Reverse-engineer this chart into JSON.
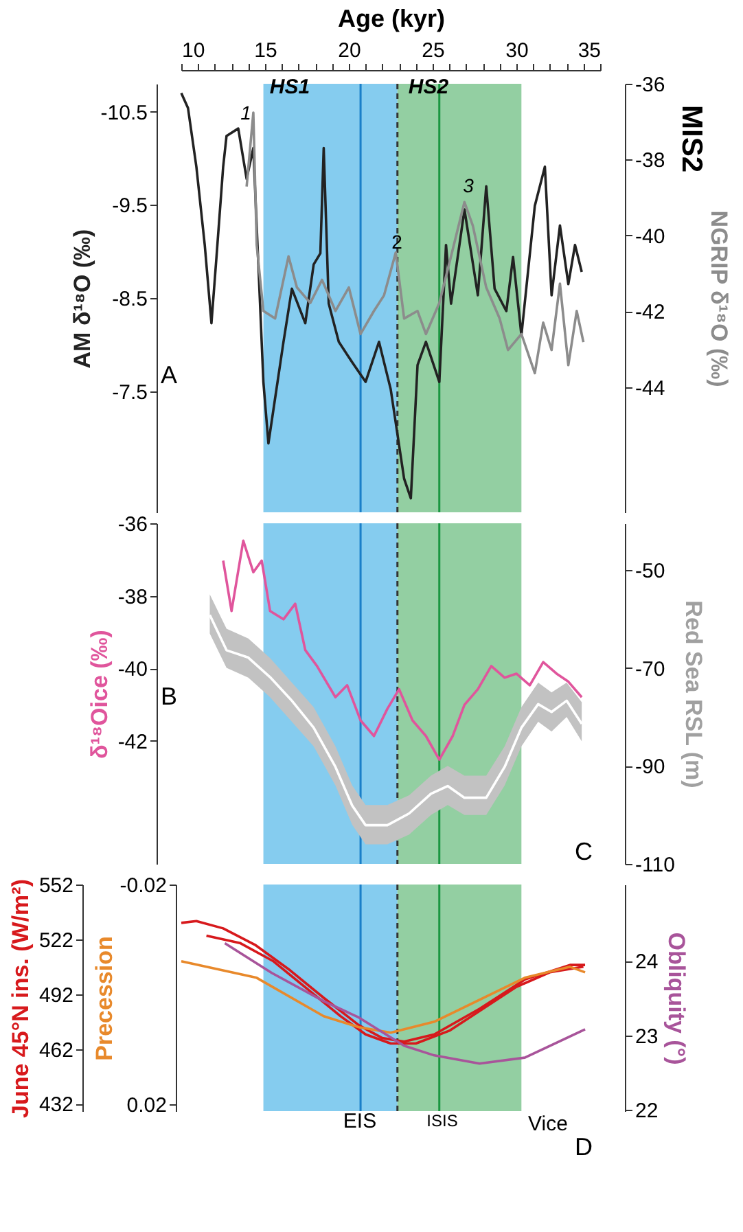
{
  "chart_data": [
    {
      "type": "line",
      "xlabel": "Age (kyr)",
      "ylabel": "AM δ¹⁸O (‰)",
      "y2label": "NGRIP δ¹⁸O (‰)",
      "xlim": [
        10,
        35
      ],
      "xticks": [
        10,
        {
          "value": 11,
          "label": null
        },
        {
          "value": 12,
          "label": null
        },
        {
          "value": 13,
          "label": null
        },
        {
          "value": 14,
          "label": null
        },
        15,
        {
          "value": 16,
          "label": null
        },
        {
          "value": 17,
          "label": null
        },
        {
          "value": 18,
          "label": null
        },
        {
          "value": 19,
          "label": null
        },
        20,
        {
          "value": 21,
          "label": null
        },
        {
          "value": 22,
          "label": null
        },
        {
          "value": 23,
          "label": null
        },
        {
          "value": 24,
          "label": null
        },
        25,
        {
          "value": 26,
          "label": null
        },
        {
          "value": 27,
          "label": null
        },
        {
          "value": 28,
          "label": null
        },
        {
          "value": 29,
          "label": null
        },
        30,
        {
          "value": 31,
          "label": null
        },
        {
          "value": 32,
          "label": null
        },
        {
          "value": 33,
          "label": null
        },
        {
          "value": 34,
          "label": null
        },
        35
      ],
      "ylim": [
        -6.2,
        -10.8
      ],
      "yticks": [
        -10.5,
        -9.5,
        -8.5,
        -7.5
      ],
      "y2lim": [
        -47.3,
        -36
      ],
      "y2ticks": [
        -36,
        -38,
        -40,
        -42,
        -44
      ],
      "series": [
        {
          "color": "#222222",
          "axis": "y",
          "x": [
            10.0,
            10.4,
            10.9,
            11.4,
            11.8,
            12.1,
            12.5,
            12.7,
            13.4,
            13.9,
            14.3,
            14.7,
            14.9,
            15.2,
            16.1,
            16.6,
            17.4,
            17.9,
            18.3,
            18.5,
            18.8,
            19.4,
            20.2,
            21.0,
            21.8,
            22.5,
            23.3,
            23.7,
            24.1,
            24.6,
            25.4,
            25.8,
            26.1,
            26.9,
            27.7,
            28.2,
            28.7,
            29.4,
            29.8,
            30.3,
            31.1,
            31.7,
            32.1,
            32.6,
            33.1,
            33.5,
            33.9
          ],
          "values": [
            -10.7,
            -10.54,
            -9.91,
            -9.07,
            -8.23,
            -8.94,
            -9.91,
            -10.24,
            -10.32,
            -9.78,
            -10.11,
            -8.44,
            -7.6,
            -6.94,
            -8.03,
            -8.6,
            -8.23,
            -8.86,
            -8.98,
            -10.11,
            -8.44,
            -8.03,
            -7.81,
            -7.6,
            -8.03,
            -7.52,
            -6.56,
            -6.35,
            -7.78,
            -8.03,
            -7.6,
            -9.07,
            -8.44,
            -9.45,
            -8.53,
            -9.7,
            -8.6,
            -8.36,
            -8.94,
            -8.1,
            -9.49,
            -9.91,
            -8.53,
            -9.28,
            -8.65,
            -9.07,
            -8.78
          ]
        },
        {
          "color": "#8c8c8c",
          "axis": "y2",
          "x": [
            13.9,
            14.3,
            14.5,
            14.9,
            15.6,
            16.4,
            16.9,
            17.7,
            18.4,
            19.2,
            20.0,
            20.7,
            21.5,
            22.1,
            22.8,
            23.3,
            24.1,
            24.6,
            25.4,
            26.1,
            26.9,
            27.4,
            28.2,
            29.0,
            29.5,
            30.3,
            31.1,
            31.6,
            32.1,
            32.6,
            33.1,
            33.6,
            34.0
          ],
          "values": [
            -38.71,
            -36.76,
            -40.25,
            -41.99,
            -42.19,
            -40.55,
            -41.37,
            -41.78,
            -41.17,
            -41.99,
            -41.37,
            -42.6,
            -41.99,
            -41.58,
            -40.45,
            -42.19,
            -41.99,
            -42.6,
            -41.78,
            -40.55,
            -39.12,
            -39.74,
            -41.37,
            -42.19,
            -43.02,
            -42.6,
            -43.63,
            -42.3,
            -43.02,
            -41.27,
            -43.42,
            -41.99,
            -42.81
          ]
        }
      ],
      "bands": [
        {
          "axis": "x",
          "from": 14.9,
          "to": 22.9,
          "color": "#5cbbe9"
        },
        {
          "axis": "x",
          "from": 22.9,
          "to": 30.3,
          "color": "#6fbf83"
        }
      ],
      "ref_lines": [
        {
          "axis": "x",
          "value": 20.7,
          "color": "#1a7fc9"
        },
        {
          "axis": "x",
          "value": 25.4,
          "color": "#1a9641"
        },
        {
          "axis": "x",
          "value": 22.9,
          "color": "#333333",
          "line_style": "dashed"
        }
      ],
      "annotations": [
        "HS1",
        "HS2",
        "1",
        "2",
        "3",
        "MIS2",
        "A"
      ],
      "grid": false,
      "legend": false
    },
    {
      "type": "line",
      "ylabel": "δ¹⁸Oice (‰)",
      "y2label": "Red Sea RSL (m)",
      "xlim": [
        10,
        35
      ],
      "tick_labels": "y",
      "ylim": [
        -45.4,
        -36
      ],
      "yticks": [
        -36,
        -38,
        -40,
        -42
      ],
      "y2lim": [
        -110,
        -40.5
      ],
      "y2ticks": [
        -50,
        -70,
        -90,
        -110
      ],
      "series": [
        {
          "color": "#e0559c",
          "axis": "y",
          "x": [
            12.5,
            13.0,
            13.7,
            14.3,
            14.8,
            15.3,
            16.1,
            16.8,
            17.4,
            18.1,
            19.2,
            19.9,
            20.7,
            21.5,
            22.3,
            23.0,
            23.8,
            24.6,
            25.4,
            26.2,
            26.9,
            27.7,
            28.5,
            29.3,
            30.0,
            30.8,
            31.6,
            32.4,
            33.1,
            33.9
          ],
          "values": [
            -37.03,
            -38.42,
            -36.48,
            -37.35,
            -37.03,
            -38.42,
            -38.65,
            -38.22,
            -39.5,
            -39.94,
            -40.8,
            -40.47,
            -41.44,
            -41.87,
            -41.12,
            -40.58,
            -41.44,
            -41.87,
            -42.52,
            -41.87,
            -41.01,
            -40.58,
            -39.94,
            -40.26,
            -40.15,
            -40.47,
            -39.83,
            -40.15,
            -40.37,
            -40.8
          ]
        },
        {
          "color": "#ffffff",
          "axis": "y2",
          "x": [
            11.7,
            12.7,
            14.0,
            15.3,
            16.6,
            17.9,
            19.2,
            20.2,
            21.0,
            22.3,
            23.6,
            24.9,
            25.9,
            26.9,
            28.2,
            29.3,
            30.3,
            31.3,
            32.1,
            33.0,
            33.9
          ],
          "values": [
            -59.2,
            -66.4,
            -67.9,
            -71.9,
            -76.7,
            -82.2,
            -90.2,
            -98.1,
            -102.1,
            -102.1,
            -99.7,
            -95.7,
            -94.1,
            -96.5,
            -96.5,
            -90.2,
            -82.2,
            -77.4,
            -79.0,
            -76.7,
            -81.4
          ],
          "lower": [
            -63,
            -70,
            -72,
            -76,
            -81,
            -86,
            -94,
            -102,
            -106,
            -106,
            -104,
            -100,
            -98,
            -100,
            -100,
            -94,
            -86,
            -81,
            -83,
            -80,
            -85
          ],
          "upper": [
            -55,
            -62,
            -64,
            -68,
            -73,
            -78,
            -86,
            -94,
            -98,
            -98,
            -96,
            -92,
            -90,
            -92,
            -92,
            -86,
            -78,
            -73,
            -75,
            -73,
            -77
          ]
        }
      ],
      "bands": [
        {
          "axis": "x",
          "from": 14.9,
          "to": 22.9,
          "color": "#5cbbe9"
        },
        {
          "axis": "x",
          "from": 22.9,
          "to": 30.3,
          "color": "#6fbf83"
        }
      ],
      "ref_lines": [
        {
          "axis": "x",
          "value": 20.7,
          "color": "#1a7fc9"
        },
        {
          "axis": "x",
          "value": 25.4,
          "color": "#1a9641"
        },
        {
          "axis": "x",
          "value": 22.9,
          "color": "#333333",
          "line_style": "dashed"
        }
      ],
      "annotations": [
        "B",
        "C"
      ],
      "grid": false,
      "legend": false
    },
    {
      "type": "line",
      "ylabel": "June 45°N ins. (W/m²)",
      "y2label": "Obliquity (°)",
      "y3label": "Precession",
      "xlim": [
        10,
        35
      ],
      "tick_labels": "y",
      "ylim": [
        428,
        552
      ],
      "yticks": [
        432,
        462,
        492,
        522,
        552
      ],
      "y2lim": [
        21.98,
        25.03
      ],
      "y2ticks": [
        22,
        23,
        24
      ],
      "y3lim": [
        0.0213,
        -0.02
      ],
      "y3ticks": [
        -0.02,
        0.02
      ],
      "series": [
        {
          "color": "#d7191c",
          "axis": "y",
          "x": [
            10.0,
            10.9,
            12.5,
            14.4,
            16.5,
            18.5,
            20.6,
            22.0,
            23.3,
            25.1,
            27.8,
            30.5,
            33.2,
            34.1
          ],
          "values": [
            531,
            532,
            528,
            519,
            505,
            490,
            475,
            468,
            466,
            470,
            484,
            500,
            508,
            508
          ]
        },
        {
          "color": "#d7191c",
          "axis": "y",
          "x": [
            11.5,
            13.5,
            15.5,
            17.5,
            19.5,
            21.0,
            22.5,
            24.0,
            26.0,
            28.0,
            30.0,
            32.0,
            34.0
          ],
          "values": [
            524,
            520,
            510,
            495,
            480,
            470,
            465,
            465,
            472,
            484,
            496,
            504,
            507
          ]
        },
        {
          "color": "#e8892b",
          "axis": "y3",
          "x": [
            10.0,
            14.5,
            18.5,
            20.6,
            22.5,
            25.1,
            27.8,
            30.5,
            33.2,
            34.1
          ],
          "values": [
            -0.006,
            -0.003,
            0.004,
            0.006,
            0.007,
            0.005,
            0.001,
            -0.003,
            -0.005,
            -0.004
          ]
        },
        {
          "color": "#a8549a",
          "axis": "y2",
          "x": [
            12.6,
            15.4,
            18.5,
            20.6,
            23.3,
            25.1,
            27.8,
            30.5,
            34.1
          ],
          "values": [
            24.24,
            23.84,
            23.46,
            23.24,
            22.86,
            22.73,
            22.62,
            22.7,
            23.08
          ]
        }
      ],
      "bands": [
        {
          "axis": "x",
          "from": 14.9,
          "to": 22.9,
          "color": "#5cbbe9"
        },
        {
          "axis": "x",
          "from": 22.9,
          "to": 30.3,
          "color": "#6fbf83"
        }
      ],
      "ref_lines": [
        {
          "axis": "x",
          "value": 20.7,
          "color": "#1a7fc9"
        },
        {
          "axis": "x",
          "value": 25.4,
          "color": "#1a9641"
        },
        {
          "axis": "x",
          "value": 22.9,
          "color": "#333333",
          "line_style": "dashed"
        }
      ],
      "annotations": [
        "D",
        "EIS",
        "ISIS",
        "Vice"
      ],
      "grid": false,
      "legend": false
    }
  ]
}
